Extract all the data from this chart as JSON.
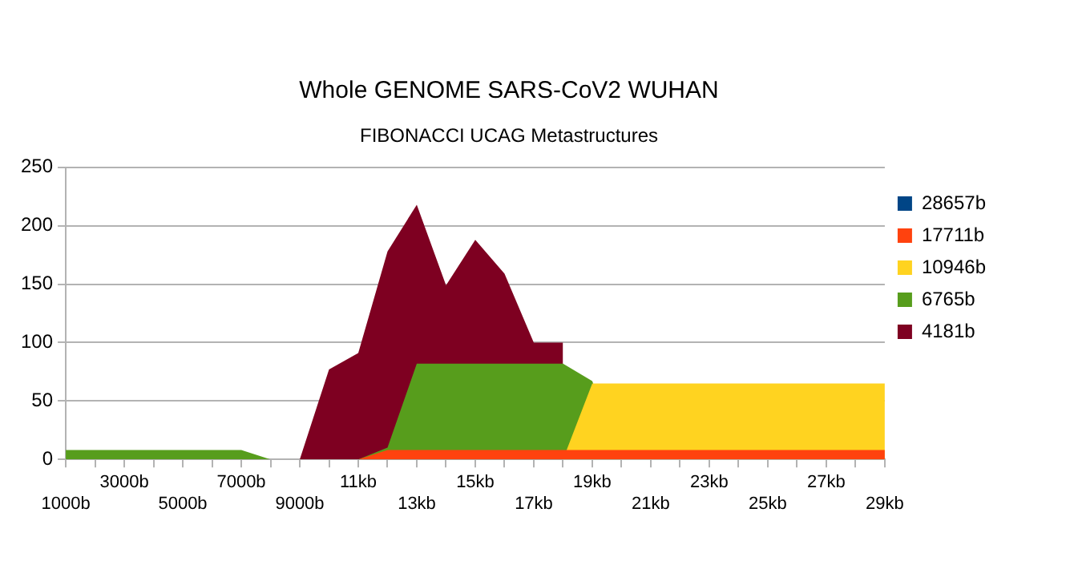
{
  "chart_data": {
    "type": "area",
    "title": "Whole GENOME SARS-CoV2 WUHAN",
    "subtitle": "FIBONACCI UCAG Metastructures",
    "categories": [
      "1000b",
      null,
      "3000b",
      null,
      "5000b",
      null,
      "7000b",
      null,
      "9000b",
      null,
      "11kb",
      null,
      "13kb",
      null,
      "15kb",
      null,
      "17kb",
      null,
      "19kb",
      null,
      "21kb",
      null,
      "23kb",
      null,
      "25kb",
      null,
      "27kb",
      null,
      "29kb"
    ],
    "series": [
      {
        "name": "28657b",
        "color": "#004586",
        "values": [
          null,
          null,
          null,
          null,
          null,
          null,
          null,
          null,
          null,
          null,
          null,
          null,
          null,
          null,
          null,
          null,
          null,
          null,
          null,
          null,
          null,
          null,
          null,
          null,
          null,
          null,
          null,
          null,
          null
        ]
      },
      {
        "name": "17711b",
        "color": "#ff420e",
        "values": [
          0,
          0,
          0,
          0,
          0,
          0,
          0,
          0,
          0,
          0,
          0,
          8,
          8,
          8,
          8,
          8,
          8,
          8,
          8,
          8,
          8,
          8,
          8,
          8,
          8,
          8,
          8,
          8,
          8
        ]
      },
      {
        "name": "10946b",
        "color": "#ffd320",
        "values": [
          0,
          0,
          0,
          0,
          0,
          0,
          0,
          0,
          0,
          0,
          0,
          0,
          0,
          0,
          0,
          0,
          0,
          0,
          65,
          65,
          65,
          65,
          65,
          65,
          65,
          65,
          65,
          65,
          65
        ]
      },
      {
        "name": "6765b",
        "color": "#579d1c",
        "values": [
          8,
          8,
          8,
          8,
          8,
          8,
          8,
          0,
          0,
          0,
          0,
          10,
          82,
          82,
          82,
          82,
          82,
          82,
          67,
          0,
          0,
          0,
          0,
          0,
          0,
          0,
          0,
          0,
          0
        ]
      },
      {
        "name": "4181b",
        "color": "#7e0021",
        "values": [
          0,
          0,
          0,
          0,
          0,
          0,
          0,
          0,
          0,
          77,
          91,
          178,
          218,
          149,
          188,
          159,
          100,
          100,
          null,
          null,
          null,
          null,
          null,
          null,
          null,
          null,
          null,
          null,
          null
        ]
      }
    ],
    "ylim": [
      0,
      250
    ],
    "yticks": [
      0,
      50,
      100,
      150,
      200,
      250
    ],
    "grid": "y",
    "legend": "right"
  }
}
